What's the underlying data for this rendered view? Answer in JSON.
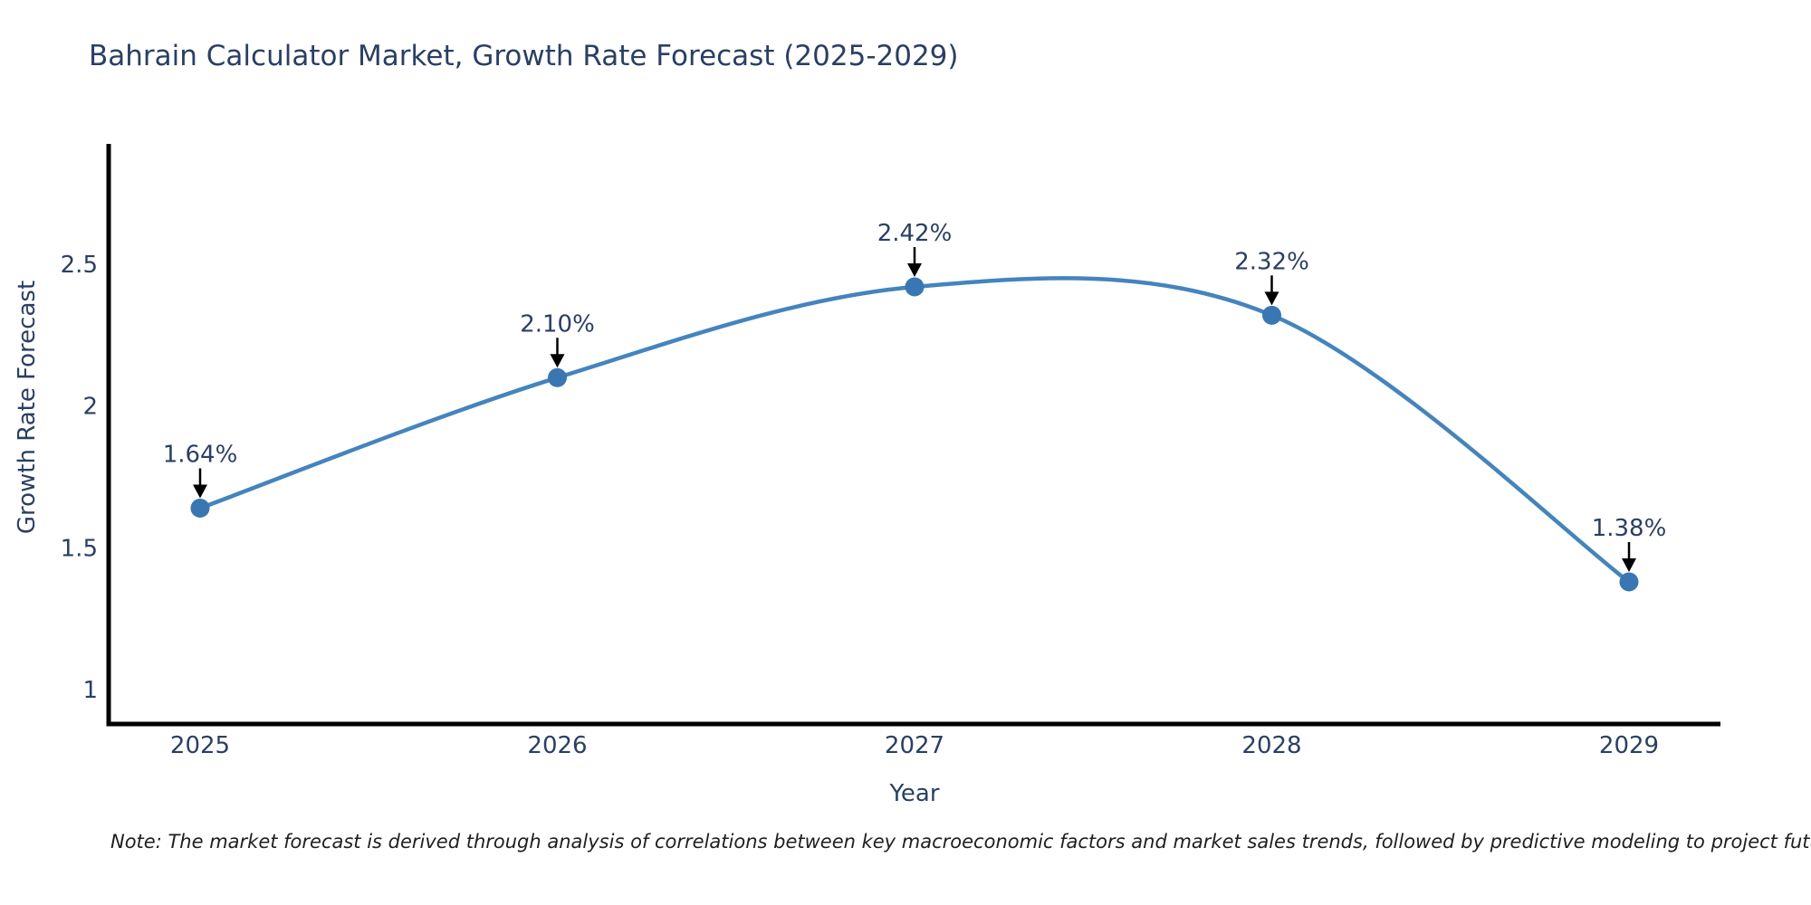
{
  "chart_data": {
    "type": "line",
    "title": "Bahrain Calculator Market, Growth Rate Forecast (2025-2029)",
    "xlabel": "Year",
    "ylabel": "Growth Rate Forecast",
    "x": [
      2025,
      2026,
      2027,
      2028,
      2029
    ],
    "values": [
      1.64,
      2.1,
      2.42,
      2.32,
      1.38
    ],
    "point_labels": [
      "1.64%",
      "2.10%",
      "2.42%",
      "2.32%",
      "1.38%"
    ],
    "xticks": [
      2025,
      2026,
      2027,
      2028,
      2029
    ],
    "yticks": [
      1,
      1.5,
      2,
      2.5
    ],
    "xlim": [
      2024.744,
      2029.256
    ],
    "ylim": [
      0.879,
      2.924
    ],
    "line_shape": "spline",
    "grid": false,
    "legend": null,
    "colors": {
      "line": "#4584bc",
      "marker": "#3977b2",
      "axis": "#000000",
      "text": "#2b3f63",
      "annotation_arrow": "#000000"
    }
  },
  "note": {
    "text": "Note: The market forecast is derived through analysis of correlations between key macroeconomic factors and market sales trends, followed by predictive modeling to project future sales"
  }
}
